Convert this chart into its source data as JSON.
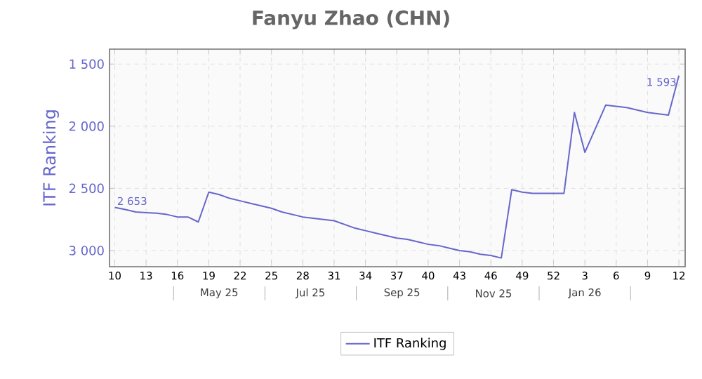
{
  "chart_data": {
    "type": "line",
    "title": "Fanyu Zhao (CHN)",
    "ylabel": "ITF Ranking",
    "categories": [
      "10",
      null,
      null,
      "13",
      null,
      null,
      "16",
      null,
      null,
      "19",
      null,
      null,
      "22",
      null,
      null,
      "25",
      null,
      null,
      "28",
      null,
      null,
      "31",
      null,
      null,
      "34",
      null,
      null,
      "37",
      null,
      null,
      "40",
      null,
      null,
      "43",
      null,
      null,
      "46",
      null,
      null,
      "49",
      null,
      null,
      "52",
      null,
      null,
      "3",
      null,
      null,
      "6",
      null,
      null,
      "9",
      null,
      null,
      "12"
    ],
    "series": [
      {
        "name": "ITF Ranking",
        "color": "#6666cc",
        "values": [
          2653,
          2670,
          2690,
          2695,
          2700,
          2710,
          2730,
          2730,
          2770,
          2530,
          2550,
          2580,
          2600,
          2620,
          2640,
          2660,
          2690,
          2710,
          2730,
          2740,
          2750,
          2760,
          2790,
          2820,
          2840,
          2860,
          2880,
          2900,
          2910,
          2930,
          2950,
          2960,
          2980,
          3000,
          3010,
          3030,
          3040,
          3060,
          2510,
          2530,
          2540,
          2540,
          2540,
          2540,
          1890,
          2210,
          2020,
          1830,
          1840,
          1850,
          1870,
          1890,
          1900,
          1910,
          1593
        ],
        "value_labels": [
          "2 653",
          null,
          null,
          null,
          null,
          null,
          null,
          null,
          null,
          null,
          null,
          null,
          null,
          null,
          null,
          null,
          null,
          null,
          null,
          null,
          null,
          null,
          null,
          null,
          null,
          null,
          null,
          null,
          null,
          null,
          null,
          null,
          null,
          null,
          null,
          null,
          null,
          null,
          null,
          null,
          null,
          null,
          null,
          null,
          null,
          null,
          null,
          null,
          null,
          null,
          null,
          null,
          null,
          null,
          "1 593"
        ]
      }
    ],
    "ylim": [
      3130,
      1380
    ],
    "yticks": [
      {
        "value": 1500,
        "label": "1 500"
      },
      {
        "value": 2000,
        "label": "2 000"
      },
      {
        "value": 2500,
        "label": "2 500"
      },
      {
        "value": 3000,
        "label": "3 000"
      }
    ],
    "annotations": [
      "May 25",
      "Jul 25",
      "Sep 25",
      "Nov 25",
      "Jan 26"
    ],
    "grid": true,
    "legend": "bottom",
    "marker": "none",
    "line_style": "solid"
  }
}
